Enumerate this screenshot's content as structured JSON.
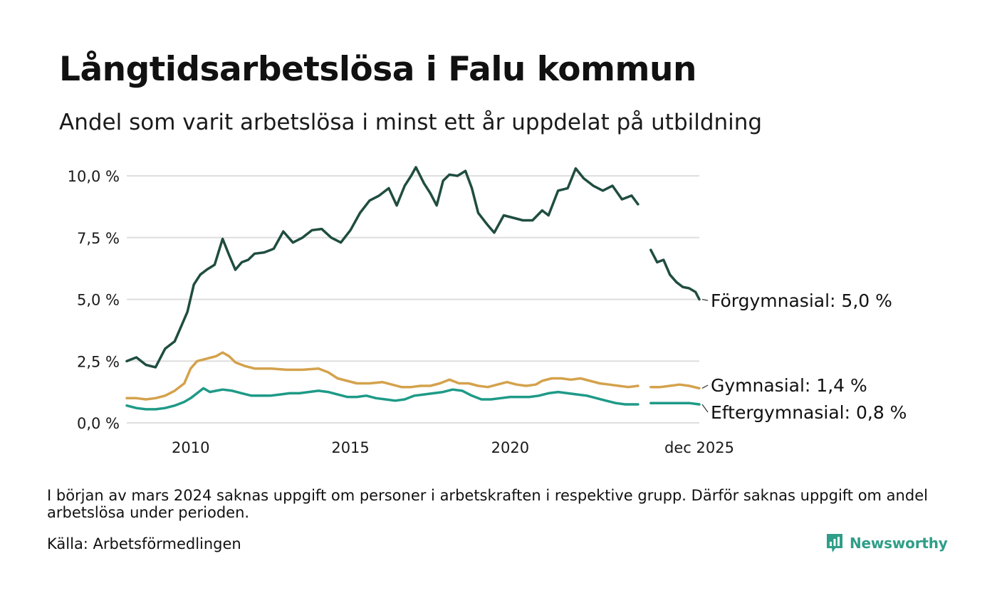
{
  "title": "Långtidsarbetslösa i Falu kommun",
  "subtitle": "Andel som varit arbetslösa i minst ett år uppdelat på utbildning",
  "footnote": "I början av mars 2024 saknas uppgift om personer i arbetskraften i respektive grupp. Därför saknas uppgift om andel arbetslösa under perioden.",
  "source": "Källa: Arbetsförmedlingen",
  "brand": {
    "name": "Newsworthy",
    "logo_icon": "newsworthy-logo-icon",
    "color": "#2f9e88"
  },
  "chart_data": {
    "type": "line",
    "title": "Långtidsarbetslösa i Falu kommun",
    "xlabel": "",
    "ylabel": "",
    "xlim": [
      2008.0,
      2025.92
    ],
    "ylim": [
      0,
      10
    ],
    "yticks": [
      "0,0 %",
      "2,5 %",
      "5,0 %",
      "7,5 %",
      "10,0 %"
    ],
    "ytick_values": [
      0,
      2.5,
      5.0,
      7.5,
      10.0
    ],
    "xticks": [
      "2010",
      "2015",
      "2020",
      "dec 2025"
    ],
    "xtick_values": [
      2010,
      2015,
      2020,
      2025.92
    ],
    "grid": true,
    "gap_note": "data missing from about 2024.0 to 2024.4",
    "series": [
      {
        "name": "Förgymnasial",
        "end_label": "Förgymnasial: 5,0 %",
        "color": "#1f4d40",
        "points": [
          [
            [
              2008.0,
              2.5
            ],
            [
              2008.3,
              2.65
            ],
            [
              2008.6,
              2.35
            ],
            [
              2008.9,
              2.25
            ],
            [
              2009.2,
              3.0
            ],
            [
              2009.5,
              3.3
            ],
            [
              2009.7,
              3.9
            ],
            [
              2009.9,
              4.5
            ],
            [
              2010.1,
              5.6
            ],
            [
              2010.3,
              6.0
            ],
            [
              2010.5,
              6.2
            ],
            [
              2010.75,
              6.4
            ],
            [
              2011.0,
              7.45
            ],
            [
              2011.2,
              6.8
            ],
            [
              2011.4,
              6.2
            ],
            [
              2011.6,
              6.5
            ],
            [
              2011.8,
              6.6
            ],
            [
              2012.0,
              6.85
            ],
            [
              2012.3,
              6.9
            ],
            [
              2012.6,
              7.05
            ],
            [
              2012.9,
              7.75
            ],
            [
              2013.2,
              7.3
            ],
            [
              2013.5,
              7.5
            ],
            [
              2013.8,
              7.8
            ],
            [
              2014.1,
              7.85
            ],
            [
              2014.4,
              7.5
            ],
            [
              2014.7,
              7.3
            ],
            [
              2015.0,
              7.8
            ],
            [
              2015.3,
              8.5
            ],
            [
              2015.6,
              9.0
            ],
            [
              2015.9,
              9.2
            ],
            [
              2016.2,
              9.5
            ],
            [
              2016.45,
              8.8
            ],
            [
              2016.7,
              9.6
            ],
            [
              2016.9,
              10.0
            ],
            [
              2017.05,
              10.35
            ],
            [
              2017.3,
              9.7
            ],
            [
              2017.5,
              9.3
            ],
            [
              2017.7,
              8.8
            ],
            [
              2017.9,
              9.8
            ],
            [
              2018.1,
              10.05
            ],
            [
              2018.35,
              10.0
            ],
            [
              2018.6,
              10.2
            ],
            [
              2018.8,
              9.5
            ],
            [
              2019.0,
              8.5
            ],
            [
              2019.3,
              8.0
            ],
            [
              2019.5,
              7.7
            ],
            [
              2019.8,
              8.4
            ],
            [
              2020.1,
              8.3
            ],
            [
              2020.4,
              8.2
            ],
            [
              2020.7,
              8.2
            ],
            [
              2021.0,
              8.6
            ],
            [
              2021.2,
              8.4
            ],
            [
              2021.5,
              9.4
            ],
            [
              2021.8,
              9.5
            ],
            [
              2022.05,
              10.3
            ],
            [
              2022.3,
              9.9
            ],
            [
              2022.6,
              9.6
            ],
            [
              2022.9,
              9.4
            ],
            [
              2023.2,
              9.6
            ],
            [
              2023.5,
              9.05
            ],
            [
              2023.8,
              9.2
            ],
            [
              2024.0,
              8.85
            ]
          ],
          [
            [
              2024.4,
              7.0
            ],
            [
              2024.6,
              6.5
            ],
            [
              2024.8,
              6.6
            ],
            [
              2025.0,
              6.0
            ],
            [
              2025.2,
              5.7
            ],
            [
              2025.4,
              5.5
            ],
            [
              2025.6,
              5.45
            ],
            [
              2025.8,
              5.3
            ],
            [
              2025.92,
              5.0
            ]
          ]
        ]
      },
      {
        "name": "Gymnasial",
        "end_label": "Gymnasial: 1,4 %",
        "color": "#d4a24c",
        "points": [
          [
            [
              2008.0,
              1.0
            ],
            [
              2008.3,
              1.0
            ],
            [
              2008.6,
              0.95
            ],
            [
              2008.9,
              1.0
            ],
            [
              2009.2,
              1.1
            ],
            [
              2009.5,
              1.3
            ],
            [
              2009.8,
              1.6
            ],
            [
              2010.0,
              2.2
            ],
            [
              2010.2,
              2.5
            ],
            [
              2010.5,
              2.6
            ],
            [
              2010.8,
              2.7
            ],
            [
              2011.0,
              2.85
            ],
            [
              2011.2,
              2.7
            ],
            [
              2011.4,
              2.45
            ],
            [
              2011.7,
              2.3
            ],
            [
              2012.0,
              2.2
            ],
            [
              2012.5,
              2.2
            ],
            [
              2013.0,
              2.15
            ],
            [
              2013.5,
              2.15
            ],
            [
              2014.0,
              2.2
            ],
            [
              2014.3,
              2.05
            ],
            [
              2014.6,
              1.8
            ],
            [
              2014.9,
              1.7
            ],
            [
              2015.2,
              1.6
            ],
            [
              2015.6,
              1.6
            ],
            [
              2016.0,
              1.65
            ],
            [
              2016.3,
              1.55
            ],
            [
              2016.6,
              1.45
            ],
            [
              2016.9,
              1.45
            ],
            [
              2017.2,
              1.5
            ],
            [
              2017.5,
              1.5
            ],
            [
              2017.8,
              1.6
            ],
            [
              2018.1,
              1.75
            ],
            [
              2018.4,
              1.6
            ],
            [
              2018.7,
              1.6
            ],
            [
              2019.0,
              1.5
            ],
            [
              2019.3,
              1.45
            ],
            [
              2019.6,
              1.55
            ],
            [
              2019.9,
              1.65
            ],
            [
              2020.2,
              1.55
            ],
            [
              2020.5,
              1.5
            ],
            [
              2020.8,
              1.55
            ],
            [
              2021.0,
              1.7
            ],
            [
              2021.3,
              1.8
            ],
            [
              2021.6,
              1.8
            ],
            [
              2021.9,
              1.75
            ],
            [
              2022.2,
              1.8
            ],
            [
              2022.5,
              1.7
            ],
            [
              2022.8,
              1.6
            ],
            [
              2023.1,
              1.55
            ],
            [
              2023.4,
              1.5
            ],
            [
              2023.7,
              1.45
            ],
            [
              2024.0,
              1.5
            ]
          ],
          [
            [
              2024.4,
              1.45
            ],
            [
              2024.7,
              1.45
            ],
            [
              2025.0,
              1.5
            ],
            [
              2025.3,
              1.55
            ],
            [
              2025.6,
              1.5
            ],
            [
              2025.92,
              1.4
            ]
          ]
        ]
      },
      {
        "name": "Eftergymnasial",
        "end_label": "Eftergymnasial: 0,8 %",
        "color": "#1e9a87",
        "points": [
          [
            [
              2008.0,
              0.7
            ],
            [
              2008.3,
              0.6
            ],
            [
              2008.6,
              0.55
            ],
            [
              2008.9,
              0.55
            ],
            [
              2009.2,
              0.6
            ],
            [
              2009.5,
              0.7
            ],
            [
              2009.8,
              0.85
            ],
            [
              2010.0,
              1.0
            ],
            [
              2010.2,
              1.2
            ],
            [
              2010.4,
              1.4
            ],
            [
              2010.6,
              1.25
            ],
            [
              2010.8,
              1.3
            ],
            [
              2011.0,
              1.35
            ],
            [
              2011.3,
              1.3
            ],
            [
              2011.6,
              1.2
            ],
            [
              2011.9,
              1.1
            ],
            [
              2012.2,
              1.1
            ],
            [
              2012.5,
              1.1
            ],
            [
              2012.8,
              1.15
            ],
            [
              2013.1,
              1.2
            ],
            [
              2013.4,
              1.2
            ],
            [
              2013.7,
              1.25
            ],
            [
              2014.0,
              1.3
            ],
            [
              2014.3,
              1.25
            ],
            [
              2014.6,
              1.15
            ],
            [
              2014.9,
              1.05
            ],
            [
              2015.2,
              1.05
            ],
            [
              2015.5,
              1.1
            ],
            [
              2015.8,
              1.0
            ],
            [
              2016.1,
              0.95
            ],
            [
              2016.4,
              0.9
            ],
            [
              2016.7,
              0.95
            ],
            [
              2017.0,
              1.1
            ],
            [
              2017.3,
              1.15
            ],
            [
              2017.6,
              1.2
            ],
            [
              2017.9,
              1.25
            ],
            [
              2018.2,
              1.35
            ],
            [
              2018.5,
              1.3
            ],
            [
              2018.8,
              1.1
            ],
            [
              2019.1,
              0.95
            ],
            [
              2019.4,
              0.95
            ],
            [
              2019.7,
              1.0
            ],
            [
              2020.0,
              1.05
            ],
            [
              2020.3,
              1.05
            ],
            [
              2020.6,
              1.05
            ],
            [
              2020.9,
              1.1
            ],
            [
              2021.2,
              1.2
            ],
            [
              2021.5,
              1.25
            ],
            [
              2021.8,
              1.2
            ],
            [
              2022.1,
              1.15
            ],
            [
              2022.4,
              1.1
            ],
            [
              2022.7,
              1.0
            ],
            [
              2023.0,
              0.9
            ],
            [
              2023.3,
              0.8
            ],
            [
              2023.6,
              0.75
            ],
            [
              2024.0,
              0.75
            ]
          ],
          [
            [
              2024.4,
              0.8
            ],
            [
              2024.7,
              0.8
            ],
            [
              2025.0,
              0.8
            ],
            [
              2025.3,
              0.8
            ],
            [
              2025.6,
              0.8
            ],
            [
              2025.92,
              0.75
            ]
          ]
        ]
      }
    ]
  }
}
